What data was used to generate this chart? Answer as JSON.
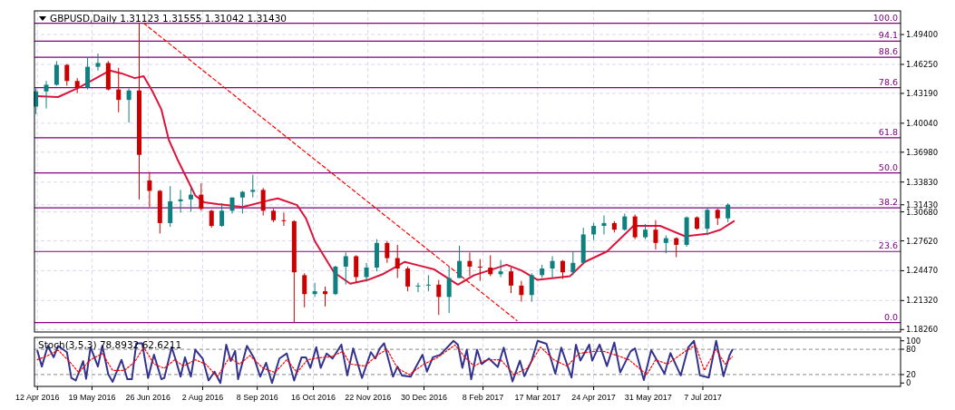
{
  "chart_data": [
    {
      "type": "candlestick",
      "title": "GBPUSD,Daily 1.31123 1.31555 1.31042 1.31430",
      "xlim": [
        "2016-04-10",
        "2017-11-18"
      ],
      "xticks": [
        "2016-04-12",
        "2016-05-19",
        "2016-06-26",
        "2016-08-02",
        "2016-09-08",
        "2016-10-16",
        "2016-11-22",
        "2016-12-30",
        "2017-02-08",
        "2017-03-17",
        "2017-04-24",
        "2017-05-31",
        "2017-07-07"
      ],
      "ylim": [
        1.18,
        1.519
      ],
      "yticks": [
        {
          "value": 1.1826,
          "label": "1.18260"
        },
        {
          "value": 1.2132,
          "label": "1.21320"
        },
        {
          "value": 1.2447,
          "label": "1.24470"
        },
        {
          "value": 1.2762,
          "label": "1.27620"
        },
        {
          "value": 1.3068,
          "label": "1.30680"
        },
        {
          "value": 1.3143,
          "label": "1.31430"
        },
        {
          "value": 1.3383,
          "label": "1.33830"
        },
        {
          "value": 1.3698,
          "label": "1.36980"
        },
        {
          "value": 1.4004,
          "label": "1.40040"
        },
        {
          "value": 1.4319,
          "label": "1.43190"
        },
        {
          "value": 1.4625,
          "label": "1.46250"
        },
        {
          "value": 1.494,
          "label": "1.49400"
        }
      ],
      "grid": true,
      "tick_labels": "y",
      "ref_lines": [
        {
          "axis": "y",
          "value": 1.19,
          "color": "#800080"
        },
        {
          "axis": "y",
          "value": 1.265,
          "color": "#800080"
        },
        {
          "axis": "y",
          "value": 1.311,
          "color": "#800080"
        },
        {
          "axis": "y",
          "value": 1.348,
          "color": "#800080"
        },
        {
          "axis": "y",
          "value": 1.385,
          "color": "#800080"
        },
        {
          "axis": "y",
          "value": 1.438,
          "color": "#800080"
        },
        {
          "axis": "y",
          "value": 1.47,
          "color": "#800080"
        },
        {
          "axis": "y",
          "value": 1.487,
          "color": "#800080"
        },
        {
          "axis": "y",
          "value": 1.506,
          "color": "#800080"
        }
      ],
      "annotations": [
        {
          "text": "0.0",
          "y": 1.19
        },
        {
          "text": "23.6",
          "y": 1.265
        },
        {
          "text": "38.2",
          "y": 1.311
        },
        {
          "text": "50.0",
          "y": 1.348
        },
        {
          "text": "61.8",
          "y": 1.385
        },
        {
          "text": "78.6",
          "y": 1.438
        },
        {
          "text": "88.6",
          "y": 1.47
        },
        {
          "text": "94.1",
          "y": 1.487
        },
        {
          "text": "100.0",
          "y": 1.506
        }
      ],
      "series": [
        {
          "color": "#0f7f7f",
          "x": [
            "2016-04-11",
            "2016-04-18",
            "2016-04-25",
            "2016-05-16",
            "2016-05-23",
            "2016-06-13",
            "2016-07-11",
            "2016-07-18",
            "2016-07-25",
            "2016-08-15",
            "2016-08-22",
            "2016-08-29",
            "2016-09-05",
            "2016-10-17",
            "2016-10-31",
            "2016-11-07",
            "2016-11-21",
            "2016-11-28",
            "2016-12-26",
            "2017-01-02",
            "2017-01-16",
            "2017-01-23",
            "2017-02-20",
            "2017-03-13",
            "2017-03-20",
            "2017-03-27",
            "2017-04-10",
            "2017-04-17",
            "2017-04-24",
            "2017-05-01",
            "2017-05-15",
            "2017-05-29",
            "2017-06-12",
            "2017-06-26",
            "2017-07-10",
            "2017-07-24"
          ],
          "ohlc": [
            [
              1.418,
              1.437,
              1.41,
              1.434
            ],
            [
              1.434,
              1.445,
              1.416,
              1.441
            ],
            [
              1.441,
              1.466,
              1.44,
              1.462
            ],
            [
              1.438,
              1.47,
              1.436,
              1.46
            ],
            [
              1.46,
              1.474,
              1.456,
              1.464
            ],
            [
              1.425,
              1.437,
              1.401,
              1.435
            ],
            [
              1.295,
              1.334,
              1.291,
              1.318
            ],
            [
              1.318,
              1.33,
              1.306,
              1.32
            ],
            [
              1.32,
              1.332,
              1.307,
              1.325
            ],
            [
              1.292,
              1.316,
              1.291,
              1.308
            ],
            [
              1.308,
              1.322,
              1.305,
              1.322
            ],
            [
              1.322,
              1.329,
              1.305,
              1.328
            ],
            [
              1.328,
              1.346,
              1.322,
              1.33
            ],
            [
              1.22,
              1.232,
              1.217,
              1.223
            ],
            [
              1.22,
              1.25,
              1.219,
              1.249
            ],
            [
              1.249,
              1.264,
              1.23,
              1.26
            ],
            [
              1.238,
              1.253,
              1.233,
              1.248
            ],
            [
              1.248,
              1.278,
              1.244,
              1.274
            ],
            [
              1.228,
              1.232,
              1.222,
              1.229
            ],
            [
              1.229,
              1.24,
              1.223,
              1.23
            ],
            [
              1.217,
              1.249,
              1.2,
              1.237
            ],
            [
              1.237,
              1.271,
              1.237,
              1.255
            ],
            [
              1.241,
              1.256,
              1.238,
              1.244
            ],
            [
              1.219,
              1.242,
              1.212,
              1.24
            ],
            [
              1.24,
              1.251,
              1.237,
              1.247
            ],
            [
              1.247,
              1.26,
              1.237,
              1.255
            ],
            [
              1.243,
              1.265,
              1.24,
              1.253
            ],
            [
              1.253,
              1.29,
              1.252,
              1.283
            ],
            [
              1.283,
              1.295,
              1.277,
              1.292
            ],
            [
              1.292,
              1.303,
              1.283,
              1.295
            ],
            [
              1.288,
              1.305,
              1.287,
              1.302
            ],
            [
              1.28,
              1.294,
              1.278,
              1.288
            ],
            [
              1.274,
              1.282,
              1.263,
              1.279
            ],
            [
              1.272,
              1.302,
              1.27,
              1.301
            ],
            [
              1.289,
              1.311,
              1.282,
              1.309
            ],
            [
              1.3,
              1.316,
              1.296,
              1.3143
            ]
          ]
        },
        {
          "color": "#cc0000",
          "x": [
            "2016-05-02",
            "2016-05-09",
            "2016-05-30",
            "2016-06-06",
            "2016-06-20",
            "2016-06-27",
            "2016-07-04",
            "2016-08-01",
            "2016-08-08",
            "2016-09-12",
            "2016-09-19",
            "2016-09-26",
            "2016-10-03",
            "2016-10-10",
            "2016-10-24",
            "2016-11-14",
            "2016-12-05",
            "2016-12-12",
            "2016-12-19",
            "2017-01-09",
            "2017-01-30",
            "2017-02-06",
            "2017-02-13",
            "2017-02-27",
            "2017-03-06",
            "2017-04-03",
            "2017-05-08",
            "2017-05-22",
            "2017-06-05",
            "2017-06-19",
            "2017-07-03",
            "2017-07-17"
          ],
          "ohlc": [
            [
              1.462,
              1.463,
              1.44,
              1.445
            ],
            [
              1.445,
              1.448,
              1.432,
              1.438
            ],
            [
              1.464,
              1.466,
              1.435,
              1.436
            ],
            [
              1.436,
              1.459,
              1.412,
              1.425
            ],
            [
              1.435,
              1.506,
              1.32,
              1.367
            ],
            [
              1.34,
              1.349,
              1.312,
              1.329
            ],
            [
              1.329,
              1.33,
              1.284,
              1.295
            ],
            [
              1.325,
              1.337,
              1.308,
              1.31
            ],
            [
              1.308,
              1.309,
              1.29,
              1.292
            ],
            [
              1.33,
              1.332,
              1.303,
              1.308
            ],
            [
              1.308,
              1.31,
              1.296,
              1.298
            ],
            [
              1.298,
              1.306,
              1.292,
              1.297
            ],
            [
              1.297,
              1.298,
              1.19,
              1.243
            ],
            [
              1.24,
              1.242,
              1.206,
              1.22
            ],
            [
              1.223,
              1.228,
              1.207,
              1.22
            ],
            [
              1.26,
              1.261,
              1.232,
              1.238
            ],
            [
              1.274,
              1.276,
              1.253,
              1.258
            ],
            [
              1.258,
              1.272,
              1.237,
              1.247
            ],
            [
              1.247,
              1.249,
              1.223,
              1.228
            ],
            [
              1.23,
              1.235,
              1.198,
              1.217
            ],
            [
              1.255,
              1.264,
              1.239,
              1.249
            ],
            [
              1.249,
              1.257,
              1.234,
              1.248
            ],
            [
              1.248,
              1.261,
              1.239,
              1.241
            ],
            [
              1.244,
              1.248,
              1.221,
              1.229
            ],
            [
              1.229,
              1.234,
              1.212,
              1.219
            ],
            [
              1.255,
              1.256,
              1.236,
              1.243
            ],
            [
              1.295,
              1.297,
              1.285,
              1.288
            ],
            [
              1.302,
              1.304,
              1.278,
              1.28
            ],
            [
              1.288,
              1.298,
              1.267,
              1.274
            ],
            [
              1.279,
              1.28,
              1.259,
              1.272
            ],
            [
              1.301,
              1.302,
              1.288,
              1.289
            ],
            [
              1.309,
              1.31,
              1.293,
              1.3
            ]
          ]
        },
        {
          "type": "line",
          "color": "#dc143c",
          "x": [
            "2016-04-12",
            "2016-04-26",
            "2016-05-10",
            "2016-05-24",
            "2016-05-31",
            "2016-06-08",
            "2016-06-17",
            "2016-06-23",
            "2016-06-29",
            "2016-07-05",
            "2016-07-10",
            "2016-07-16",
            "2016-07-22",
            "2016-07-28",
            "2016-08-03",
            "2016-08-12",
            "2016-08-29",
            "2016-09-16",
            "2016-09-22",
            "2016-10-05",
            "2016-10-11",
            "2016-10-17",
            "2016-10-30",
            "2016-11-10",
            "2016-11-22",
            "2016-12-02",
            "2016-12-17",
            "2016-12-27",
            "2017-01-06",
            "2017-01-22",
            "2017-02-02",
            "2017-02-24",
            "2017-03-06",
            "2017-03-17",
            "2017-04-08",
            "2017-04-18",
            "2017-05-03",
            "2017-05-21",
            "2017-06-08",
            "2017-06-25",
            "2017-07-11",
            "2017-07-19",
            "2017-07-28"
          ],
          "values": [
            1.429,
            1.428,
            1.438,
            1.45,
            1.456,
            1.453,
            1.448,
            1.45,
            1.434,
            1.415,
            1.383,
            1.362,
            1.343,
            1.324,
            1.317,
            1.315,
            1.312,
            1.319,
            1.321,
            1.314,
            1.3,
            1.276,
            1.243,
            1.231,
            1.235,
            1.241,
            1.254,
            1.25,
            1.246,
            1.23,
            1.24,
            1.251,
            1.245,
            1.235,
            1.239,
            1.254,
            1.265,
            1.292,
            1.292,
            1.281,
            1.284,
            1.288,
            1.297
          ]
        },
        {
          "type": "line",
          "color": "#ff0000",
          "line_style": "dashed",
          "x": [
            "2016-06-23",
            "2017-03-03"
          ],
          "values": [
            1.506,
            1.192
          ]
        }
      ]
    },
    {
      "type": "line",
      "title": "Stoch(3,5,3) 78.8932 62.6211",
      "xlim": [
        "2016-04-10",
        "2017-11-18"
      ],
      "xticks": [
        {
          "value": "2016-04-12",
          "label": "12 Apr 2016"
        },
        {
          "value": "2016-05-19",
          "label": "19 May 2016"
        },
        {
          "value": "2016-06-26",
          "label": "26 Jun 2016"
        },
        {
          "value": "2016-08-02",
          "label": "2 Aug 2016"
        },
        {
          "value": "2016-09-08",
          "label": "8 Sep 2016"
        },
        {
          "value": "2016-10-16",
          "label": "16 Oct 2016"
        },
        {
          "value": "2016-11-22",
          "label": "22 Nov 2016"
        },
        {
          "value": "2016-12-30",
          "label": "30 Dec 2016"
        },
        {
          "value": "2017-02-08",
          "label": "8 Feb 2017"
        },
        {
          "value": "2017-03-17",
          "label": "17 Mar 2017"
        },
        {
          "value": "2017-04-24",
          "label": "24 Apr 2017"
        },
        {
          "value": "2017-05-31",
          "label": "31 May 2017"
        },
        {
          "value": "2017-07-07",
          "label": "7 Jul 2017"
        }
      ],
      "ylim": [
        -8,
        108
      ],
      "yticks": [
        0,
        20,
        80,
        100
      ],
      "grid": "x",
      "ref_lines": [
        {
          "axis": "y",
          "value": 20,
          "color": "#a0a0a0",
          "line_style": "dashed"
        },
        {
          "axis": "y",
          "value": 80,
          "color": "#a0a0a0",
          "line_style": "dashed"
        }
      ],
      "series": [
        {
          "color": "#33338f",
          "x": [
            "2016-04-12",
            "2016-04-15",
            "2016-04-19",
            "2016-04-23",
            "2016-04-26",
            "2016-05-02",
            "2016-05-05",
            "2016-05-08",
            "2016-05-13",
            "2016-05-15",
            "2016-05-18",
            "2016-05-23",
            "2016-05-26",
            "2016-05-30",
            "2016-06-02",
            "2016-06-08",
            "2016-06-12",
            "2016-06-15",
            "2016-06-18",
            "2016-06-22",
            "2016-06-26",
            "2016-06-30",
            "2016-07-05",
            "2016-07-07",
            "2016-07-12",
            "2016-07-15",
            "2016-07-18",
            "2016-07-21",
            "2016-07-25",
            "2016-07-28",
            "2016-08-02",
            "2016-08-06",
            "2016-08-10",
            "2016-08-14",
            "2016-08-18",
            "2016-08-21",
            "2016-08-24",
            "2016-08-26",
            "2016-09-01",
            "2016-09-06",
            "2016-09-10",
            "2016-09-14",
            "2016-09-18",
            "2016-09-23",
            "2016-09-28",
            "2016-10-03",
            "2016-10-08",
            "2016-10-11",
            "2016-10-14",
            "2016-10-18",
            "2016-10-21",
            "2016-10-25",
            "2016-10-29",
            "2016-11-04",
            "2016-11-08",
            "2016-11-12",
            "2016-11-18",
            "2016-11-24",
            "2016-11-27",
            "2016-11-30",
            "2016-12-03",
            "2016-12-09",
            "2016-12-12",
            "2016-12-15",
            "2016-12-21",
            "2016-12-29",
            "2017-01-01",
            "2017-01-05",
            "2017-01-10",
            "2017-01-19",
            "2017-01-22",
            "2017-01-25",
            "2017-01-28",
            "2017-01-31",
            "2017-02-04",
            "2017-02-07",
            "2017-02-12",
            "2017-02-18",
            "2017-02-22",
            "2017-02-28",
            "2017-03-05",
            "2017-03-08",
            "2017-03-13",
            "2017-03-17",
            "2017-03-23",
            "2017-03-29",
            "2017-04-02",
            "2017-04-09",
            "2017-04-12",
            "2017-04-15",
            "2017-04-21",
            "2017-04-23",
            "2017-04-28",
            "2017-05-03",
            "2017-05-08",
            "2017-05-12",
            "2017-05-19",
            "2017-05-22",
            "2017-05-28",
            "2017-06-02",
            "2017-06-11",
            "2017-06-15",
            "2017-06-22",
            "2017-06-27",
            "2017-07-01",
            "2017-07-05",
            "2017-07-11",
            "2017-07-16",
            "2017-07-21",
            "2017-07-25",
            "2017-07-27"
          ],
          "values": [
            76,
            39,
            88,
            61,
            88,
            73,
            12,
            6,
            52,
            10,
            85,
            39,
            88,
            21,
            3,
            55,
            9,
            9,
            94,
            94,
            12,
            67,
            9,
            12,
            85,
            52,
            15,
            61,
            15,
            79,
            58,
            6,
            27,
            0,
            91,
            52,
            76,
            9,
            88,
            58,
            15,
            48,
            0,
            58,
            70,
            6,
            61,
            61,
            36,
            85,
            36,
            70,
            58,
            91,
            18,
            82,
            12,
            73,
            58,
            82,
            94,
            15,
            39,
            18,
            15,
            67,
            27,
            61,
            67,
            100,
            91,
            36,
            79,
            9,
            79,
            45,
            58,
            38,
            84,
            4,
            53,
            16,
            53,
            100,
            93,
            22,
            84,
            13,
            91,
            53,
            91,
            53,
            91,
            40,
            96,
            25,
            75,
            82,
            7,
            78,
            22,
            71,
            18,
            84,
            100,
            18,
            13,
            100,
            16,
            65,
            78.8932
          ]
        },
        {
          "color": "#ff0000",
          "line_style": "dotted",
          "x": [
            "2016-04-12",
            "2016-04-19",
            "2016-04-26",
            "2016-05-04",
            "2016-05-10",
            "2016-05-18",
            "2016-05-26",
            "2016-06-02",
            "2016-06-10",
            "2016-06-17",
            "2016-06-23",
            "2016-06-30",
            "2016-07-07",
            "2016-07-14",
            "2016-07-20",
            "2016-07-28",
            "2016-08-04",
            "2016-08-12",
            "2016-08-20",
            "2016-08-27",
            "2016-09-03",
            "2016-09-12",
            "2016-09-20",
            "2016-09-28",
            "2016-10-05",
            "2016-10-12",
            "2016-10-20",
            "2016-10-28",
            "2016-11-05",
            "2016-11-10",
            "2016-11-20",
            "2016-11-28",
            "2016-12-05",
            "2016-12-12",
            "2016-12-20",
            "2016-12-30",
            "2017-01-08",
            "2017-01-20",
            "2017-01-27",
            "2017-02-02",
            "2017-02-10",
            "2017-02-20",
            "2017-03-01",
            "2017-03-10",
            "2017-03-19",
            "2017-03-28",
            "2017-04-06",
            "2017-04-14",
            "2017-04-24",
            "2017-05-01",
            "2017-05-10",
            "2017-05-18",
            "2017-05-30",
            "2017-06-05",
            "2017-06-13",
            "2017-06-25",
            "2017-07-02",
            "2017-07-08",
            "2017-07-16",
            "2017-07-22",
            "2017-07-27"
          ],
          "values": [
            55,
            65,
            78,
            50,
            25,
            55,
            70,
            30,
            30,
            50,
            85,
            45,
            35,
            55,
            40,
            55,
            45,
            15,
            60,
            45,
            65,
            35,
            25,
            55,
            25,
            55,
            60,
            62,
            75,
            45,
            40,
            65,
            80,
            35,
            20,
            45,
            60,
            90,
            60,
            40,
            55,
            55,
            20,
            35,
            85,
            55,
            40,
            70,
            75,
            75,
            65,
            55,
            20,
            55,
            45,
            75,
            90,
            30,
            80,
            45,
            62.6211
          ]
        }
      ]
    }
  ]
}
